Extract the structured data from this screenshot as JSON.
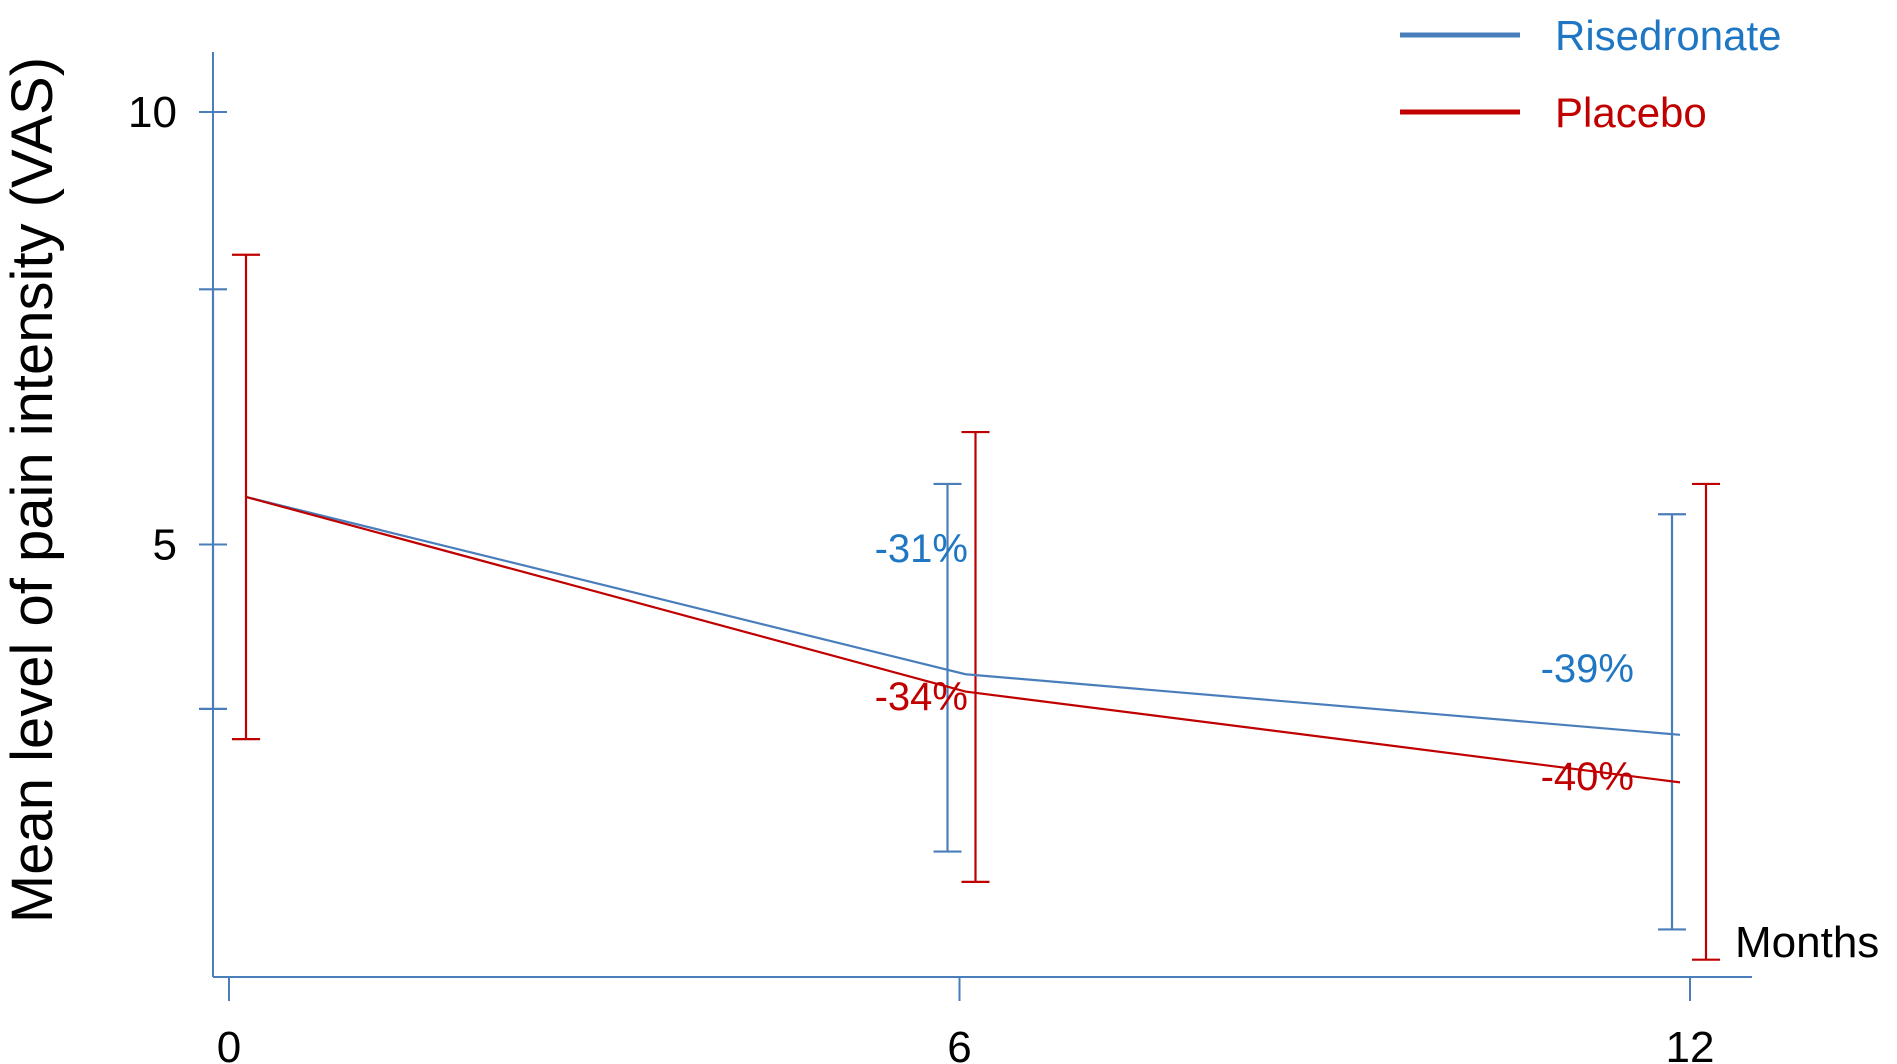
{
  "chart_data": {
    "type": "line",
    "title": "",
    "xlabel": "Months",
    "ylabel": "Mean level of pain intensity (VAS)",
    "x": [
      0,
      6,
      12
    ],
    "x_tick_labels": [
      "0",
      "6",
      "12"
    ],
    "y_tick_labels": [
      "10",
      "5"
    ],
    "y_ticks": [
      10,
      5
    ],
    "xlim": [
      -0.1,
      12.4
    ],
    "ylim": [
      0,
      10.5
    ],
    "grid": false,
    "legend_position": "top-right",
    "series": [
      {
        "name": "Risedronate",
        "color": "#4a7ebb",
        "label_color": "#1f77c4",
        "values": [
          5.55,
          3.5,
          2.8
        ],
        "error_low": [
          3.1,
          1.45,
          0.55
        ],
        "error_high": [
          7.95,
          5.7,
          5.35
        ],
        "annotations": [
          "",
          "-31%",
          "-39%"
        ]
      },
      {
        "name": "Placebo",
        "color": "#c00000",
        "label_color": "#c00000",
        "values": [
          5.55,
          3.3,
          2.25
        ],
        "error_low": [
          2.75,
          1.1,
          0.2
        ],
        "error_high": [
          8.35,
          6.3,
          5.7
        ],
        "annotations": [
          "",
          "-34%",
          "-40%"
        ]
      }
    ]
  }
}
